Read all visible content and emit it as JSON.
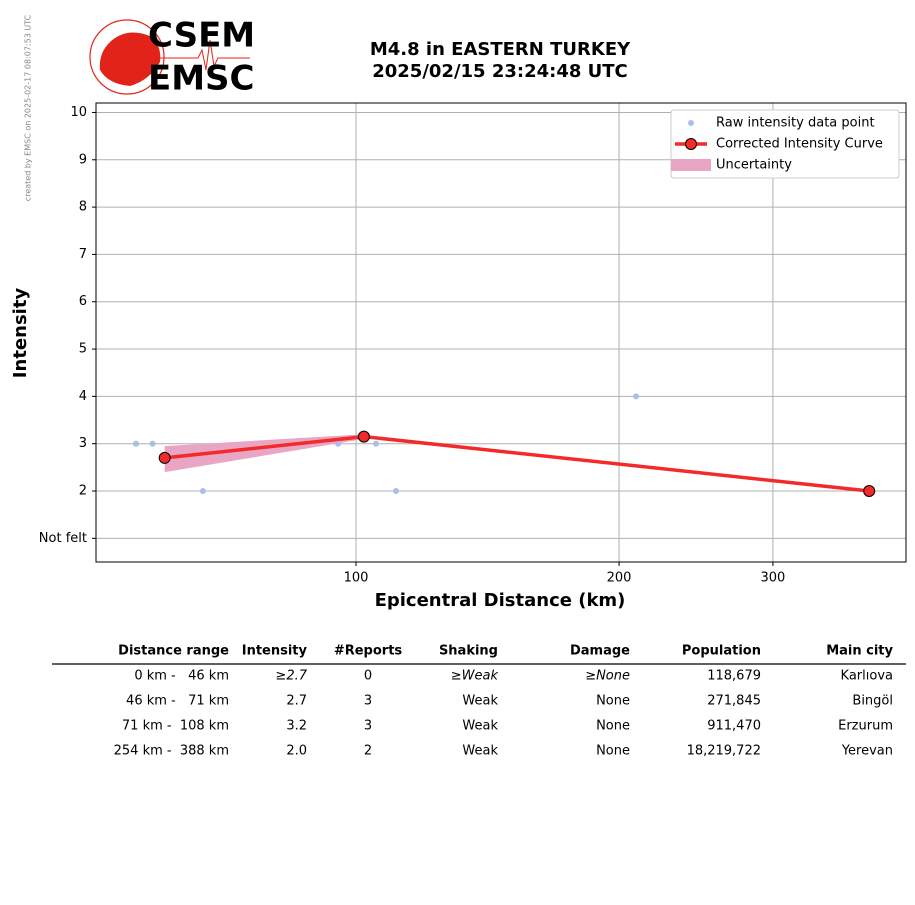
{
  "logo": {
    "top": "CSEM",
    "bottom": "EMSC"
  },
  "side_note": "created by EMSC on 2025-02-17 08:07:53 UTC",
  "chart_data": {
    "type": "line",
    "title": "M4.8 in EASTERN TURKEY",
    "subtitle": "2025/02/15 23:24:48 UTC",
    "x_label": "Epicentral Distance (km)",
    "y_label": "Intensity",
    "x_scale": "log",
    "xlim": [
      50.4,
      426
    ],
    "xticks": [
      100,
      200,
      300
    ],
    "ylim": [
      0.5,
      10.2
    ],
    "yticks": [
      {
        "value": 1,
        "label": "Not felt"
      },
      2,
      3,
      4,
      5,
      6,
      7,
      8,
      9,
      10
    ],
    "grid": true,
    "legend": "upper right",
    "series": [
      {
        "name": "Raw intensity data point",
        "kind": "scatter",
        "color": "#aebde8",
        "x": [
          56.0,
          58.5,
          66.8,
          95.4,
          105.4,
          111.1,
          209.2
        ],
        "values": [
          3,
          3,
          2,
          3,
          3,
          2,
          4
        ]
      },
      {
        "name": "Corrected Intensity Curve",
        "kind": "line",
        "color": "#f22a2a",
        "x": [
          60.4,
          102.1,
          386.6
        ],
        "values": [
          2.7,
          3.15,
          2.0
        ]
      },
      {
        "name": "Uncertainty",
        "kind": "band",
        "color": "#e8a6c4",
        "x": [
          60.4,
          102.1
        ],
        "upper": [
          2.95,
          3.2
        ],
        "lower": [
          2.4,
          3.1
        ]
      }
    ]
  },
  "table": {
    "headers": [
      "Distance range",
      "Intensity",
      "#Reports",
      "Shaking",
      "Damage",
      "Population",
      "Main city"
    ],
    "rows": [
      [
        "0 km -   46 km",
        "≥2.7",
        "0",
        "≥Weak",
        "≥None",
        "118,679",
        "Karlıova"
      ],
      [
        "46 km -   71 km",
        "2.7",
        "3",
        "Weak",
        "None",
        "271,845",
        "Bingöl"
      ],
      [
        "71 km -  108 km",
        "3.2",
        "3",
        "Weak",
        "None",
        "911,470",
        "Erzurum"
      ],
      [
        "254 km -  388 km",
        "2.0",
        "2",
        "Weak",
        "None",
        "18,219,722",
        "Yerevan"
      ]
    ]
  }
}
